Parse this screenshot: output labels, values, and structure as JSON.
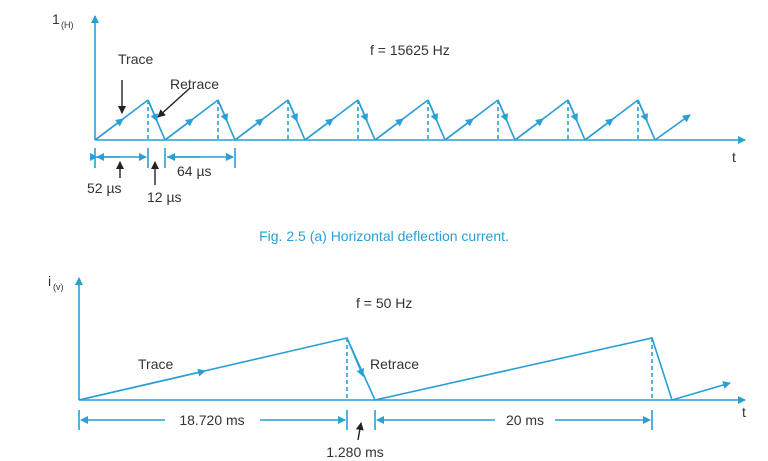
{
  "horizontal": {
    "ylabel": "1",
    "ylabel_sub": "(H)",
    "xlabel": "t",
    "freq": "f = 15625 Hz",
    "trace_label": "Trace",
    "retrace_label": "Retrace",
    "trace_time": "52 µs",
    "retrace_time": "12 µs",
    "period": "64 µs",
    "caption": "Fig. 2.5 (a) Horizontal deflection current."
  },
  "vertical": {
    "ylabel": "i",
    "ylabel_sub": "(v)",
    "xlabel": "t",
    "freq": "f = 50 Hz",
    "trace_label": "Trace",
    "retrace_label": "Retrace",
    "trace_time": "18.720 ms",
    "retrace_time": "1.280 ms",
    "period": "20 ms"
  },
  "colors": {
    "line": "#2a9fd6",
    "text": "#333333"
  }
}
